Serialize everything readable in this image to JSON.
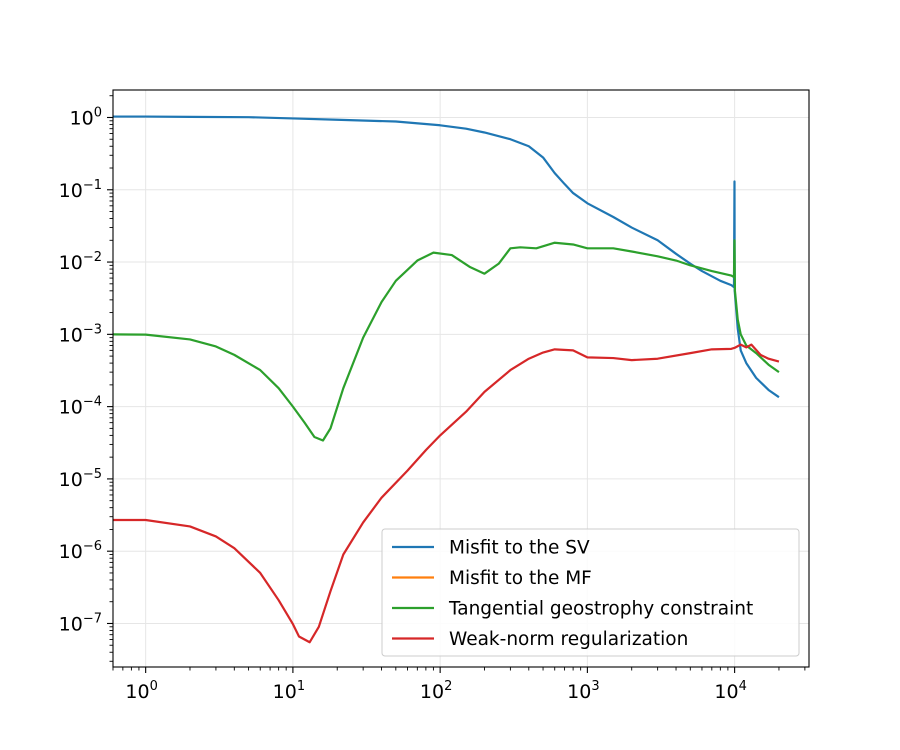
{
  "chart_data": {
    "type": "line",
    "title": "",
    "xlabel": "",
    "ylabel": "",
    "xscale": "log",
    "yscale": "log",
    "xlim": [
      0.6,
      32000
    ],
    "ylim": [
      2.5e-08,
      2.4
    ],
    "grid": true,
    "legend_position": "lower-right",
    "x_ticks": [
      {
        "base": "10",
        "exp": "0",
        "value": 1
      },
      {
        "base": "10",
        "exp": "1",
        "value": 10
      },
      {
        "base": "10",
        "exp": "2",
        "value": 100
      },
      {
        "base": "10",
        "exp": "3",
        "value": 1000
      },
      {
        "base": "10",
        "exp": "4",
        "value": 10000
      }
    ],
    "y_ticks": [
      {
        "base": "10",
        "exp": "0",
        "value": 1
      },
      {
        "base": "10",
        "exp": "−1",
        "value": 0.1
      },
      {
        "base": "10",
        "exp": "−2",
        "value": 0.01
      },
      {
        "base": "10",
        "exp": "−3",
        "value": 0.001
      },
      {
        "base": "10",
        "exp": "−4",
        "value": 0.0001
      },
      {
        "base": "10",
        "exp": "−5",
        "value": 1e-05
      },
      {
        "base": "10",
        "exp": "−6",
        "value": 1e-06
      },
      {
        "base": "10",
        "exp": "−7",
        "value": 1e-07
      }
    ],
    "series": [
      {
        "name": "Misfit to the SV",
        "color": "#1f77b4",
        "points": [
          [
            0.6,
            1.03
          ],
          [
            1,
            1.03
          ],
          [
            2,
            1.02
          ],
          [
            5,
            1.01
          ],
          [
            10,
            0.97
          ],
          [
            20,
            0.93
          ],
          [
            50,
            0.88
          ],
          [
            100,
            0.78
          ],
          [
            150,
            0.7
          ],
          [
            200,
            0.62
          ],
          [
            300,
            0.5
          ],
          [
            400,
            0.4
          ],
          [
            500,
            0.28
          ],
          [
            600,
            0.17
          ],
          [
            700,
            0.12
          ],
          [
            800,
            0.09
          ],
          [
            1000,
            0.065
          ],
          [
            1500,
            0.042
          ],
          [
            2000,
            0.03
          ],
          [
            3000,
            0.02
          ],
          [
            4000,
            0.013
          ],
          [
            5000,
            0.0095
          ],
          [
            6000,
            0.0075
          ],
          [
            8000,
            0.0055
          ],
          [
            9500,
            0.0048
          ],
          [
            9900,
            0.0045
          ],
          [
            9980,
            0.13
          ],
          [
            10010,
            0.004
          ],
          [
            10200,
            0.0025
          ],
          [
            10500,
            0.0012
          ],
          [
            11000,
            0.0006
          ],
          [
            12000,
            0.0004
          ],
          [
            14000,
            0.00025
          ],
          [
            17000,
            0.00017
          ],
          [
            20000,
            0.000135
          ]
        ]
      },
      {
        "name": "Misfit to the MF",
        "color": "#ff7f0e",
        "points": []
      },
      {
        "name": "Tangential geostrophy constraint",
        "color": "#2ca02c",
        "points": [
          [
            0.6,
            0.001
          ],
          [
            1,
            0.00099
          ],
          [
            2,
            0.00085
          ],
          [
            3,
            0.00068
          ],
          [
            4,
            0.00052
          ],
          [
            6,
            0.00032
          ],
          [
            8,
            0.00018
          ],
          [
            10,
            0.0001
          ],
          [
            12,
            6e-05
          ],
          [
            14,
            3.8e-05
          ],
          [
            16,
            3.4e-05
          ],
          [
            18,
            5e-05
          ],
          [
            22,
            0.00018
          ],
          [
            30,
            0.0009
          ],
          [
            40,
            0.0028
          ],
          [
            50,
            0.0055
          ],
          [
            70,
            0.0105
          ],
          [
            90,
            0.0135
          ],
          [
            120,
            0.0125
          ],
          [
            160,
            0.0085
          ],
          [
            200,
            0.0069
          ],
          [
            250,
            0.0095
          ],
          [
            300,
            0.0155
          ],
          [
            350,
            0.016
          ],
          [
            450,
            0.0155
          ],
          [
            600,
            0.0185
          ],
          [
            800,
            0.0175
          ],
          [
            1000,
            0.0155
          ],
          [
            1500,
            0.0155
          ],
          [
            2000,
            0.014
          ],
          [
            3000,
            0.012
          ],
          [
            4000,
            0.0105
          ],
          [
            5000,
            0.009
          ],
          [
            7000,
            0.0075
          ],
          [
            9500,
            0.0065
          ],
          [
            9900,
            0.0062
          ],
          [
            9980,
            0.02
          ],
          [
            10050,
            0.004
          ],
          [
            10500,
            0.0016
          ],
          [
            11000,
            0.001
          ],
          [
            12000,
            0.0007
          ],
          [
            14000,
            0.00055
          ],
          [
            17000,
            0.00038
          ],
          [
            20000,
            0.0003
          ]
        ]
      },
      {
        "name": "Weak-norm regularization",
        "color": "#d62728",
        "points": [
          [
            0.6,
            2.7e-06
          ],
          [
            1,
            2.7e-06
          ],
          [
            2,
            2.2e-06
          ],
          [
            3,
            1.6e-06
          ],
          [
            4,
            1.1e-06
          ],
          [
            6,
            5e-07
          ],
          [
            8,
            2.1e-07
          ],
          [
            10,
            9.8e-08
          ],
          [
            11,
            6.6e-08
          ],
          [
            13,
            5.5e-08
          ],
          [
            15,
            9e-08
          ],
          [
            18,
            2.8e-07
          ],
          [
            22,
            9e-07
          ],
          [
            30,
            2.5e-06
          ],
          [
            40,
            5.5e-06
          ],
          [
            60,
            1.3e-05
          ],
          [
            80,
            2.5e-05
          ],
          [
            100,
            4e-05
          ],
          [
            150,
            8.5e-05
          ],
          [
            200,
            0.00016
          ],
          [
            300,
            0.00032
          ],
          [
            400,
            0.00046
          ],
          [
            500,
            0.00056
          ],
          [
            600,
            0.00062
          ],
          [
            800,
            0.0006
          ],
          [
            1000,
            0.00048
          ],
          [
            1500,
            0.00047
          ],
          [
            2000,
            0.00044
          ],
          [
            3000,
            0.00046
          ],
          [
            5000,
            0.00055
          ],
          [
            7000,
            0.00062
          ],
          [
            9500,
            0.00063
          ],
          [
            10000,
            0.00065
          ],
          [
            11000,
            0.00072
          ],
          [
            12000,
            0.00066
          ],
          [
            13000,
            0.00072
          ],
          [
            15000,
            0.00052
          ],
          [
            17000,
            0.00046
          ],
          [
            20000,
            0.00042
          ]
        ]
      }
    ]
  }
}
